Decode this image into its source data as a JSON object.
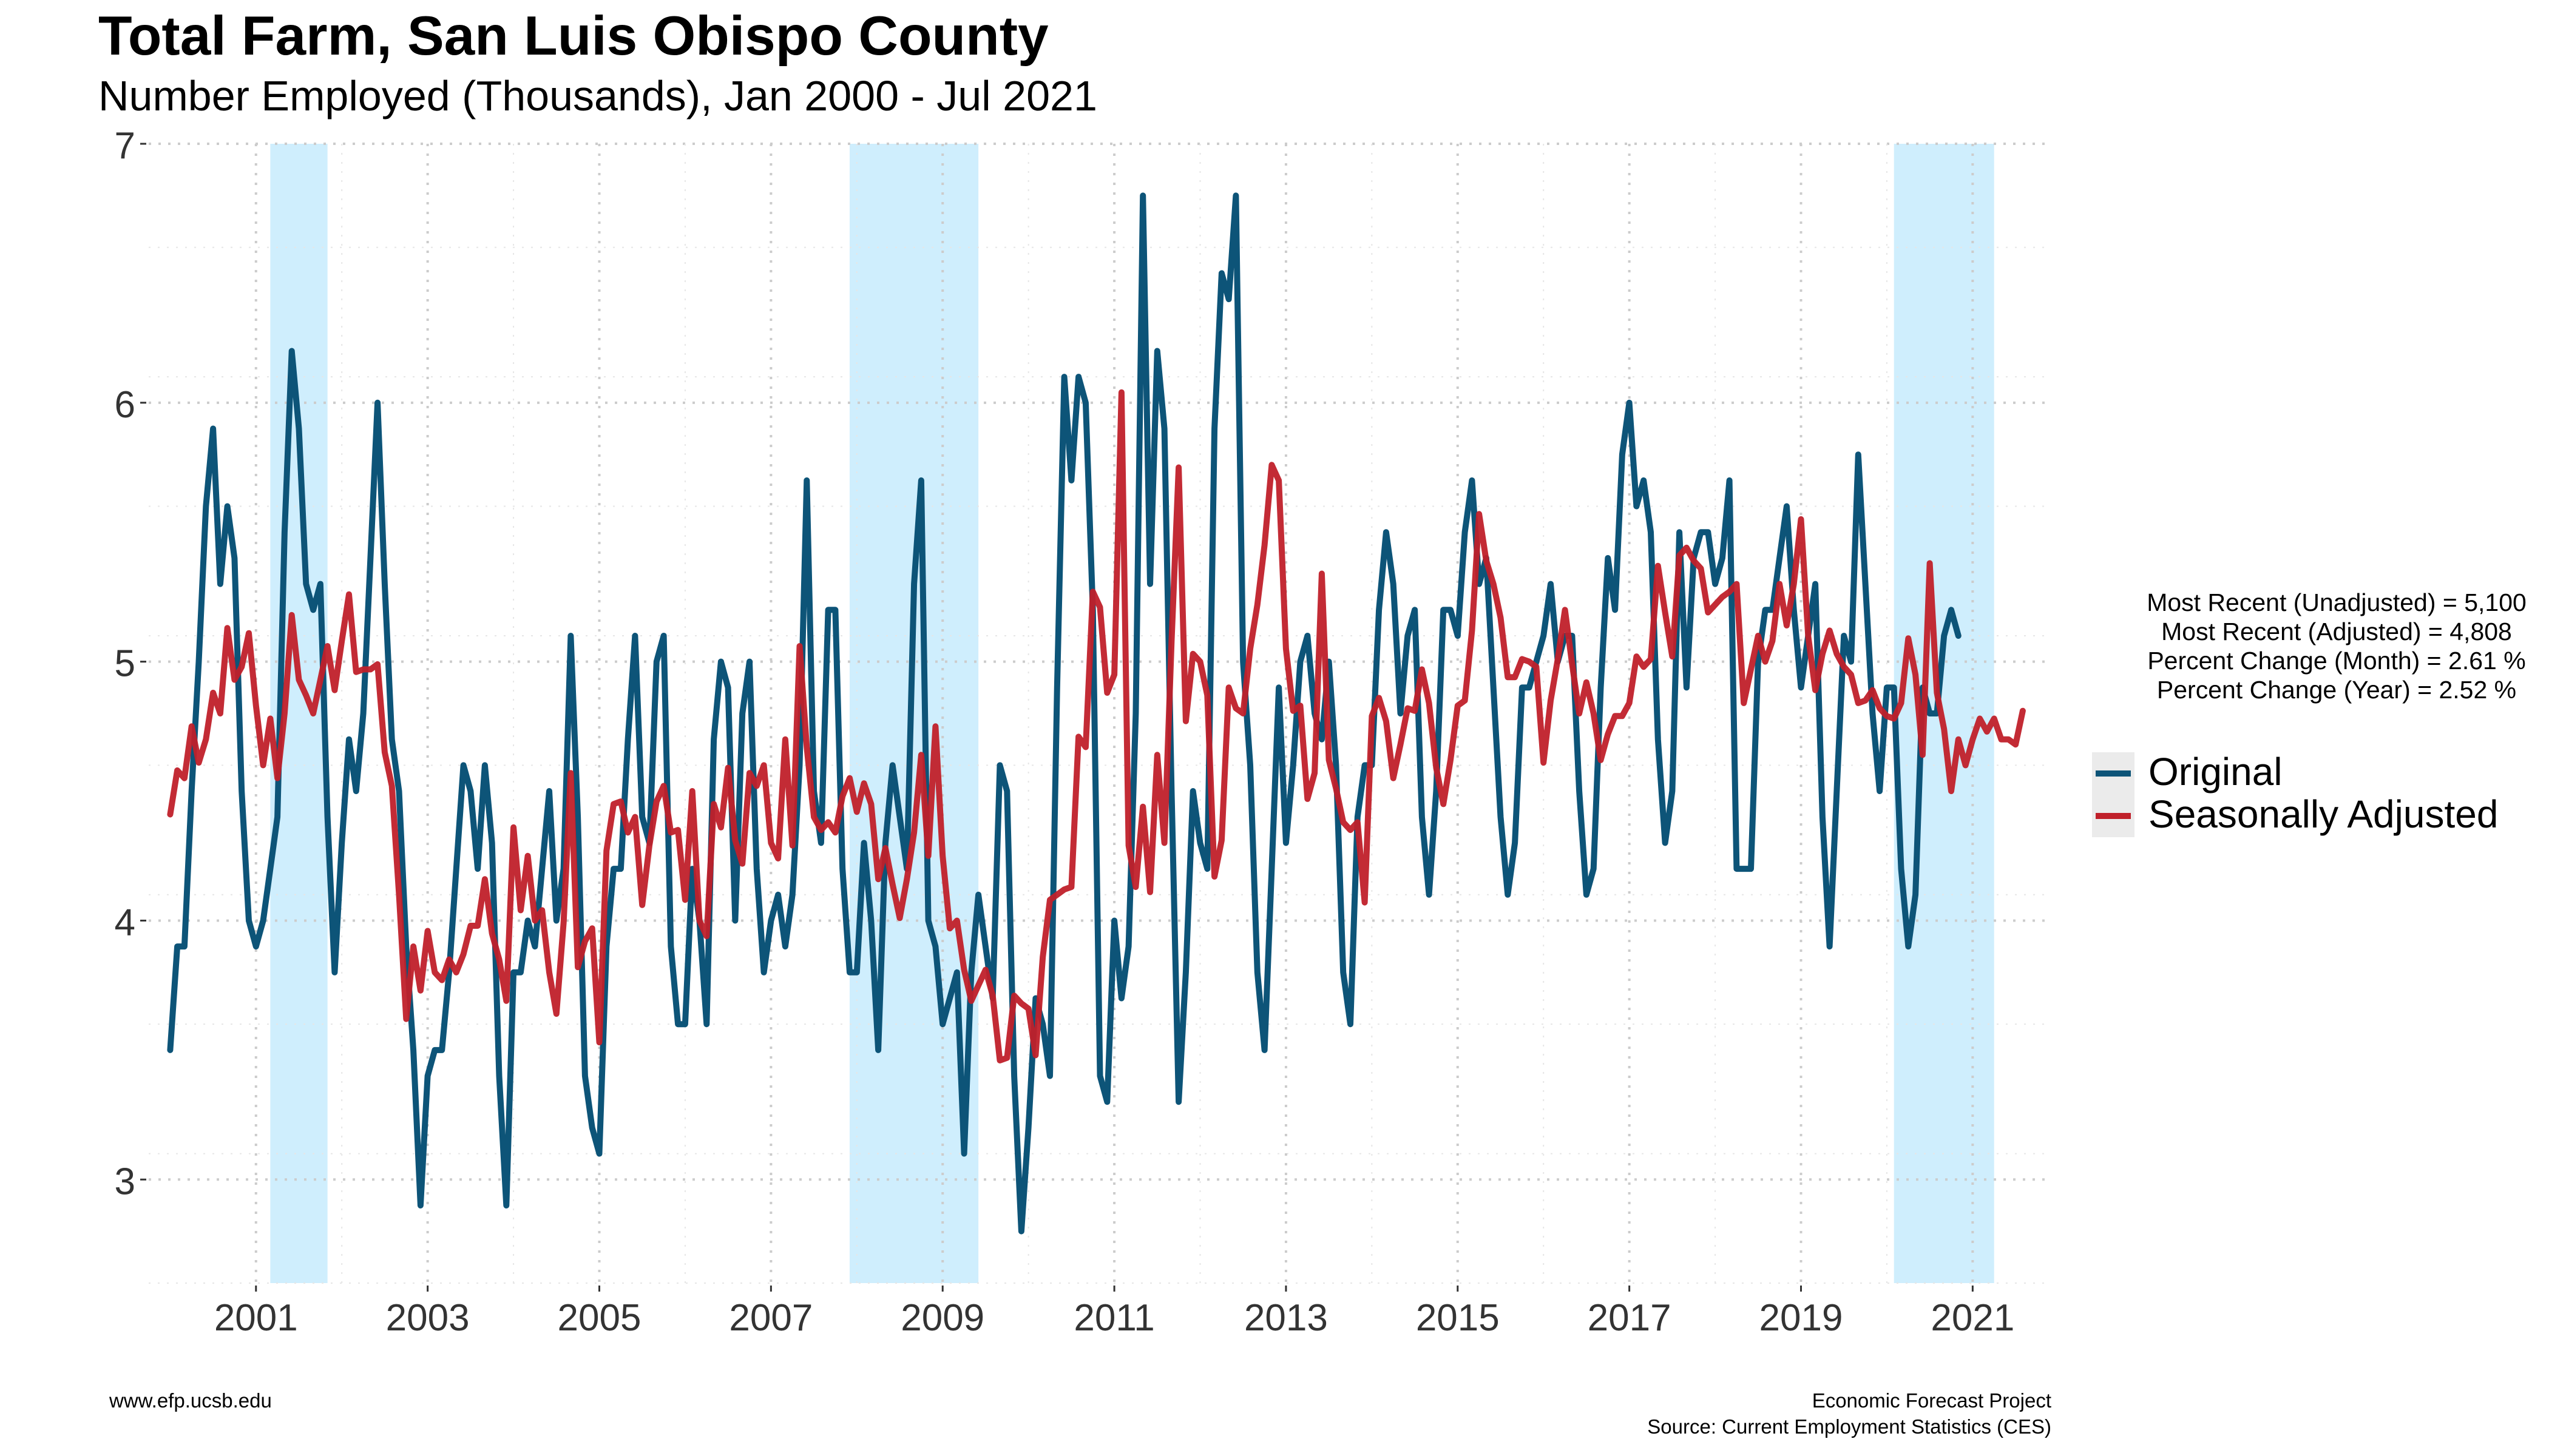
{
  "chart_data": {
    "type": "line",
    "title": "Total Farm, San Luis Obispo County",
    "subtitle": "Number Employed (Thousands), Jan 2000 - Jul 2021",
    "x_ticks": [
      "2001",
      "2003",
      "2005",
      "2007",
      "2009",
      "2011",
      "2013",
      "2015",
      "2017",
      "2019",
      "2021"
    ],
    "y_ticks": [
      "3",
      "4",
      "5",
      "6",
      "7"
    ],
    "xlim": [
      "1999-10",
      "2021-12"
    ],
    "ylim": [
      2.6,
      7.0
    ],
    "grid": true,
    "recession_periods": [
      {
        "start": "2001-03",
        "end": "2001-11"
      },
      {
        "start": "2007-12",
        "end": "2009-06"
      },
      {
        "start": "2020-02",
        "end": "2021-04"
      }
    ],
    "x_start": "2000-01",
    "series": [
      {
        "name": "Original",
        "color": "#0d5478",
        "values": [
          3.5,
          3.9,
          3.9,
          4.5,
          5.0,
          5.6,
          5.9,
          5.3,
          5.6,
          5.4,
          4.5,
          4.0,
          3.9,
          4.0,
          4.2,
          4.4,
          5.5,
          6.2,
          5.9,
          5.3,
          5.2,
          5.3,
          4.4,
          3.8,
          4.3,
          4.7,
          4.5,
          4.8,
          5.4,
          6.0,
          5.3,
          4.7,
          4.5,
          3.9,
          3.5,
          2.9,
          3.4,
          3.5,
          3.5,
          3.8,
          4.2,
          4.6,
          4.5,
          4.2,
          4.6,
          4.3,
          3.4,
          2.9,
          3.8,
          3.8,
          4.0,
          3.9,
          4.2,
          4.5,
          4.0,
          4.2,
          5.1,
          4.4,
          3.4,
          3.2,
          3.1,
          3.9,
          4.2,
          4.2,
          4.7,
          5.1,
          4.4,
          4.3,
          5.0,
          5.1,
          3.9,
          3.6,
          3.6,
          4.2,
          4.0,
          3.6,
          4.7,
          5.0,
          4.9,
          4.0,
          4.8,
          5.0,
          4.2,
          3.8,
          4.0,
          4.1,
          3.9,
          4.1,
          4.6,
          5.7,
          4.5,
          4.3,
          5.2,
          5.2,
          4.2,
          3.8,
          3.8,
          4.3,
          4.0,
          3.5,
          4.3,
          4.6,
          4.4,
          4.2,
          5.3,
          5.7,
          4.0,
          3.9,
          3.6,
          3.7,
          3.8,
          3.1,
          3.8,
          4.1,
          3.9,
          3.7,
          4.6,
          4.5,
          3.4,
          2.8,
          3.2,
          3.7,
          3.6,
          3.4,
          4.9,
          6.1,
          5.7,
          6.1,
          6.0,
          5.2,
          3.4,
          3.3,
          4.0,
          3.7,
          3.9,
          4.8,
          6.8,
          5.3,
          6.2,
          5.9,
          4.5,
          3.3,
          3.8,
          4.5,
          4.3,
          4.2,
          5.9,
          6.5,
          6.4,
          6.8,
          5.0,
          4.6,
          3.8,
          3.5,
          4.2,
          4.9,
          4.3,
          4.6,
          5.0,
          5.1,
          4.8,
          4.7,
          5.0,
          4.6,
          3.8,
          3.6,
          4.4,
          4.6,
          4.6,
          5.2,
          5.5,
          5.3,
          4.8,
          5.1,
          5.2,
          4.4,
          4.1,
          4.5,
          5.2,
          5.2,
          5.1,
          5.5,
          5.7,
          5.3,
          5.4,
          4.9,
          4.4,
          4.1,
          4.3,
          4.9,
          4.9,
          5.0,
          5.1,
          5.3,
          5.0,
          5.1,
          5.1,
          4.5,
          4.1,
          4.2,
          4.9,
          5.4,
          5.2,
          5.8,
          6.0,
          5.6,
          5.7,
          5.5,
          4.7,
          4.3,
          4.5,
          5.5,
          4.9,
          5.4,
          5.5,
          5.5,
          5.3,
          5.4,
          5.7,
          4.2,
          4.2,
          4.2,
          5.0,
          5.2,
          5.2,
          5.4,
          5.6,
          5.2,
          4.9,
          5.1,
          5.3,
          4.4,
          3.9,
          4.5,
          5.1,
          5.0,
          5.8,
          5.3,
          4.8,
          4.5,
          4.9,
          4.9,
          4.2,
          3.9,
          4.1,
          4.9,
          4.8,
          4.8,
          5.1,
          5.2,
          5.1
        ]
      },
      {
        "name": "Seasonally Adjusted",
        "color": "#c0202a",
        "values": [
          4.41,
          4.58,
          4.55,
          4.75,
          4.61,
          4.7,
          4.88,
          4.8,
          5.13,
          4.93,
          4.98,
          5.11,
          4.83,
          4.6,
          4.78,
          4.55,
          4.8,
          5.18,
          4.93,
          4.87,
          4.8,
          4.93,
          5.06,
          4.89,
          5.08,
          5.26,
          4.96,
          4.97,
          4.97,
          4.99,
          4.65,
          4.52,
          4.1,
          3.62,
          3.9,
          3.73,
          3.96,
          3.8,
          3.77,
          3.85,
          3.8,
          3.87,
          3.98,
          3.98,
          4.16,
          3.95,
          3.85,
          3.69,
          4.36,
          4.04,
          4.25,
          4.0,
          4.04,
          3.8,
          3.64,
          3.99,
          4.57,
          3.82,
          3.92,
          3.97,
          3.53,
          4.27,
          4.45,
          4.46,
          4.34,
          4.4,
          4.06,
          4.29,
          4.46,
          4.52,
          4.34,
          4.35,
          4.08,
          4.5,
          4.0,
          3.94,
          4.45,
          4.36,
          4.59,
          4.31,
          4.22,
          4.57,
          4.52,
          4.6,
          4.3,
          4.24,
          4.7,
          4.29,
          5.06,
          4.67,
          4.4,
          4.35,
          4.38,
          4.34,
          4.48,
          4.55,
          4.42,
          4.53,
          4.45,
          4.16,
          4.28,
          4.14,
          4.01,
          4.16,
          4.34,
          4.64,
          4.25,
          4.75,
          4.25,
          3.97,
          4.0,
          3.81,
          3.69,
          3.75,
          3.81,
          3.71,
          3.46,
          3.47,
          3.71,
          3.68,
          3.66,
          3.48,
          3.86,
          4.08,
          4.1,
          4.12,
          4.13,
          4.71,
          4.67,
          5.27,
          5.21,
          4.88,
          4.95,
          6.04,
          4.29,
          4.13,
          4.44,
          4.11,
          4.64,
          4.3,
          5.08,
          5.75,
          4.77,
          5.03,
          5.0,
          4.87,
          4.17,
          4.31,
          4.9,
          4.82,
          4.8,
          5.05,
          5.22,
          5.45,
          5.76,
          5.7,
          5.05,
          4.81,
          4.83,
          4.47,
          4.57,
          5.34,
          4.62,
          4.51,
          4.38,
          4.35,
          4.38,
          4.07,
          4.79,
          4.86,
          4.77,
          4.55,
          4.68,
          4.82,
          4.81,
          4.97,
          4.84,
          4.59,
          4.45,
          4.62,
          4.83,
          4.85,
          5.12,
          5.57,
          5.39,
          5.3,
          5.17,
          4.94,
          4.94,
          5.01,
          5.0,
          4.98,
          4.61,
          4.85,
          5.01,
          5.2,
          4.99,
          4.8,
          4.92,
          4.8,
          4.62,
          4.72,
          4.79,
          4.79,
          4.84,
          5.02,
          4.98,
          5.01,
          5.37,
          5.19,
          5.02,
          5.41,
          5.44,
          5.39,
          5.36,
          5.19,
          5.22,
          5.25,
          5.27,
          5.3,
          4.84,
          4.97,
          5.1,
          5.0,
          5.08,
          5.3,
          5.14,
          5.3,
          5.55,
          5.1,
          4.89,
          5.03,
          5.12,
          5.03,
          4.98,
          4.95,
          4.84,
          4.85,
          4.89,
          4.82,
          4.79,
          4.78,
          4.84,
          5.09,
          4.95,
          4.64,
          5.38,
          4.88,
          4.74,
          4.5,
          4.7,
          4.6,
          4.7,
          4.78,
          4.73,
          4.78,
          4.7,
          4.7,
          4.68,
          4.81
        ]
      }
    ]
  },
  "stats": [
    "Most Recent (Unadjusted) = 5,100",
    "Most Recent (Adjusted) = 4,808",
    "Percent Change (Month) = 2.61 %",
    "Percent Change (Year) = 2.52 %"
  ],
  "footer": {
    "website": "www.efp.ucsb.edu",
    "org": "Economic Forecast Project",
    "source": "Source: Current Employment Statistics (CES)"
  }
}
